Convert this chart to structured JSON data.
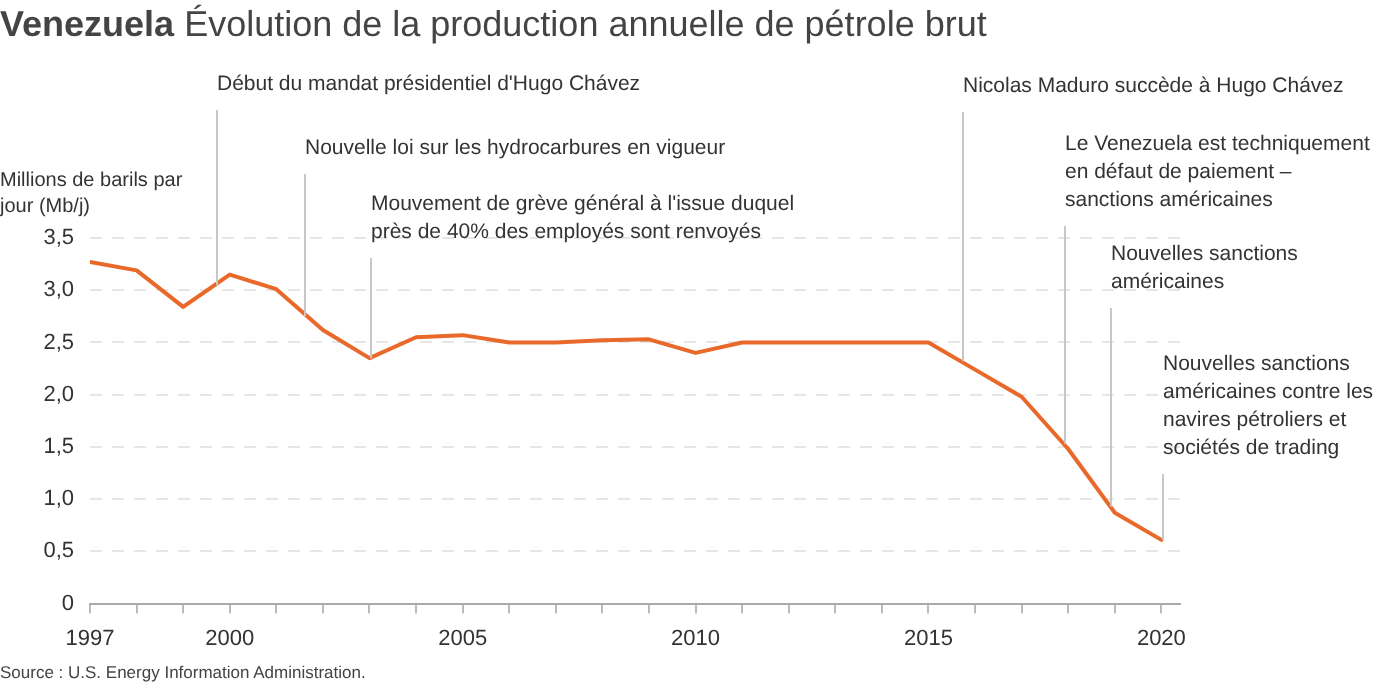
{
  "chart_data": {
    "type": "line",
    "title": "Venezuela",
    "subtitle": "Évolution de la production annuelle de pétrole brut",
    "ylabel": "Millions de barils par jour (Mb/j)",
    "x": [
      1997,
      1998,
      1999,
      2000,
      2001,
      2002,
      2003,
      2004,
      2005,
      2006,
      2007,
      2008,
      2009,
      2010,
      2011,
      2012,
      2013,
      2014,
      2015,
      2016,
      2017,
      2018,
      2019,
      2020
    ],
    "series": [
      {
        "color": "#e8692a",
        "values": [
          3.27,
          3.19,
          2.84,
          3.15,
          3.01,
          2.62,
          2.35,
          2.55,
          2.57,
          2.5,
          2.5,
          2.52,
          2.53,
          2.4,
          2.5,
          2.5,
          2.5,
          2.5,
          2.5,
          2.24,
          1.98,
          1.48,
          0.87,
          0.61
        ]
      }
    ],
    "xlim": [
      1997,
      2020.4
    ],
    "xticks": [
      1997,
      {
        "value": 1998,
        "label": null
      },
      {
        "value": 1999,
        "label": null
      },
      2000,
      {
        "value": 2001,
        "label": null
      },
      {
        "value": 2002,
        "label": null
      },
      {
        "value": 2003,
        "label": null
      },
      {
        "value": 2004,
        "label": null
      },
      2005,
      {
        "value": 2006,
        "label": null
      },
      {
        "value": 2007,
        "label": null
      },
      {
        "value": 2008,
        "label": null
      },
      {
        "value": 2009,
        "label": null
      },
      2010,
      {
        "value": 2011,
        "label": null
      },
      {
        "value": 2012,
        "label": null
      },
      {
        "value": 2013,
        "label": null
      },
      {
        "value": 2014,
        "label": null
      },
      2015,
      {
        "value": 2016,
        "label": null
      },
      {
        "value": 2017,
        "label": null
      },
      {
        "value": 2018,
        "label": null
      },
      {
        "value": 2019,
        "label": null
      },
      2020
    ],
    "ylim": [
      0,
      3.5
    ],
    "yticks": [
      0,
      {
        "value": 0.5,
        "label": "0,5"
      },
      {
        "value": 1,
        "label": "1,0"
      },
      {
        "value": 1.5,
        "label": "1,5"
      },
      {
        "value": 2,
        "label": "2,0"
      },
      {
        "value": 2.5,
        "label": "2,5"
      },
      {
        "value": 3,
        "label": "3,0"
      },
      {
        "value": 3.5,
        "label": "3,5"
      }
    ],
    "grid": "y",
    "marker": "none",
    "line_style": "solid",
    "legend": false,
    "annotations": [
      {
        "text": "Début du mandat présidentiel d'Hugo Chávez",
        "x": 1999.7,
        "y": 3.05
      },
      {
        "text": "Nouvelle loi sur les hydrocarbures en vigueur",
        "x": 2001.6,
        "y": 2.75
      },
      {
        "text": "Mouvement de grève général à l'issue duquel près de 40% des employés sont renvoyés",
        "x": 2003,
        "y": 2.35
      },
      {
        "text": "Nicolas Maduro succède à Hugo Chávez",
        "x": 2015.7,
        "y": 2.32
      },
      {
        "text": "Le Venezuela est techniquement en défaut de paiement – sanctions américaines",
        "x": 2017.9,
        "y": 1.53
      },
      {
        "text": "Nouvelles sanctions américaines",
        "x": 2018.9,
        "y": 0.93
      },
      {
        "text": "Nouvelles sanctions américaines contre les navires pétroliers et sociétés de trading",
        "x": 2020,
        "y": 0.61
      },
      "Source : U.S. Energy Information Administration."
    ]
  }
}
